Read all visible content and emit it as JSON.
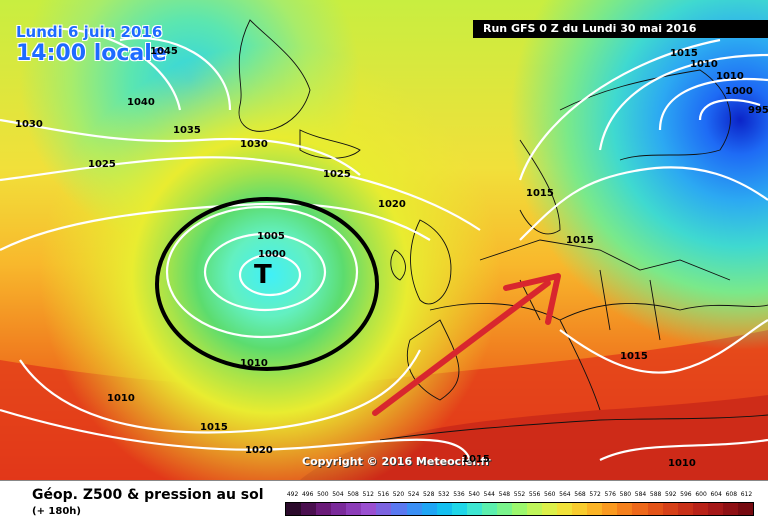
{
  "header": {
    "date": "Lundi 6 juin 2016",
    "time": "14:00 locale",
    "run": "Run GFS 0 Z du Lundi 30 mai 2016"
  },
  "map": {
    "copyright": "Copyright © 2016 Meteociel.fr",
    "low_symbol": "T",
    "isobar_labels": [
      "1045",
      "1040",
      "1035",
      "1030",
      "1030",
      "1025",
      "1025",
      "1020",
      "1015",
      "1015",
      "1015",
      "1010",
      "1010",
      "1005",
      "1000",
      "1000",
      "995",
      "1010",
      "1015",
      "1020",
      "1015",
      "1015",
      "1010",
      "1010"
    ],
    "annotation_arrow_color": "#d8262e",
    "low_circle_color": "#000000"
  },
  "legend": {
    "title": "Géop. Z500 & pression au sol",
    "subtitle": "(+ 180h)",
    "scale_labels": [
      "492",
      "496",
      "500",
      "504",
      "508",
      "512",
      "516",
      "520",
      "524",
      "528",
      "532",
      "536",
      "540",
      "544",
      "548",
      "552",
      "556",
      "560",
      "564",
      "568",
      "572",
      "576",
      "580",
      "584",
      "588",
      "592",
      "596",
      "600",
      "604",
      "608",
      "612"
    ],
    "scale_colors": [
      "#2b0a2b",
      "#4a0f4f",
      "#6a1a78",
      "#7a2a9a",
      "#8c3cb8",
      "#9a4fd0",
      "#7c63e0",
      "#5a78f0",
      "#3a8ff5",
      "#1fa5f5",
      "#14bff0",
      "#1fd6e8",
      "#3ee6d2",
      "#5cefae",
      "#7af48c",
      "#9cf76e",
      "#bff55a",
      "#dcf04a",
      "#f1e23a",
      "#f8cc2e",
      "#fbb426",
      "#fa9a20",
      "#f5801c",
      "#ee681a",
      "#e35318",
      "#d64018",
      "#c83018",
      "#b82218",
      "#a51818",
      "#8e1014",
      "#760a10"
    ]
  }
}
